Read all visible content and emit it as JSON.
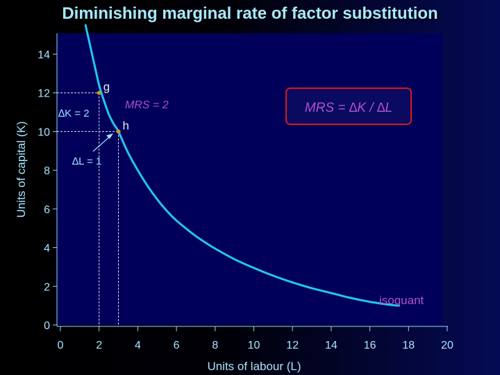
{
  "slide": {
    "title": "Diminishing marginal rate of factor substitution"
  },
  "chart_data": {
    "type": "line",
    "xlabel": "Units of labour (L)",
    "ylabel": "Units of capital (K)",
    "xlim": [
      0,
      20
    ],
    "ylim": [
      0,
      14
    ],
    "x_ticks": [
      0,
      2,
      4,
      6,
      8,
      10,
      12,
      14,
      16,
      18,
      20
    ],
    "y_ticks": [
      0,
      2,
      4,
      6,
      8,
      10,
      12,
      14
    ],
    "grid": false,
    "series": [
      {
        "name": "isoquant",
        "x": [
          1.3,
          1.5,
          1.75,
          2,
          2.25,
          2.5,
          2.75,
          3,
          3.5,
          4,
          4.5,
          5,
          5.5,
          6,
          7,
          8,
          9,
          10,
          11,
          12,
          13,
          14,
          15,
          16,
          17,
          17.5
        ],
        "y": [
          15.5,
          14.6,
          13.5,
          12.4,
          11.6,
          10.9,
          10.4,
          10,
          8.9,
          8.0,
          7.2,
          6.5,
          5.9,
          5.4,
          4.6,
          3.95,
          3.4,
          2.95,
          2.55,
          2.2,
          1.9,
          1.65,
          1.4,
          1.2,
          1.05,
          1.0
        ],
        "color": "#20c8f0"
      }
    ],
    "points": [
      {
        "label": "g",
        "x": 2,
        "y": 12
      },
      {
        "label": "h",
        "x": 3,
        "y": 10
      }
    ],
    "annotations": {
      "delta_k": "∆K = 2",
      "delta_l": "∆L = 1",
      "mrs_point": "MRS = 2",
      "mrs_formula": "MRS = ∆K / ∆L",
      "curve_label": "isoquant"
    },
    "colors": {
      "plot_bg": "#00005a",
      "curve": "#20c8f0",
      "points": "#c89628",
      "labels": "#a0e0ff",
      "accent": "#b050d0",
      "box_border": "#d81818"
    }
  }
}
